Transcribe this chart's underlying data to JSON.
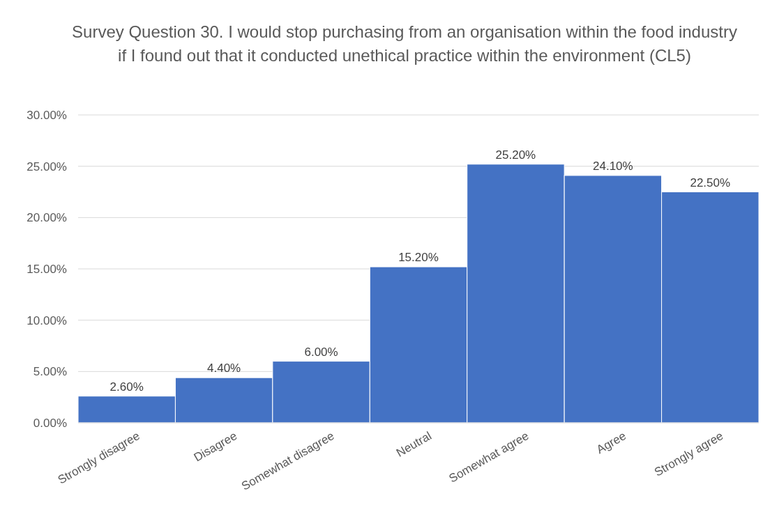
{
  "chart_data": {
    "type": "bar",
    "title": "Survey Question 30. I would stop purchasing from an organisation within the food industry if I found out that it conducted unethical practice within the environment (CL5)",
    "categories": [
      "Strongly disagree",
      "Disagree",
      "Somewhat disagree",
      "Neutral",
      "Somewhat agree",
      "Agree",
      "Strongly agree"
    ],
    "values": [
      2.6,
      4.4,
      6.0,
      15.2,
      25.2,
      24.1,
      22.5
    ],
    "value_labels": [
      "2.60%",
      "4.40%",
      "6.00%",
      "15.20%",
      "25.20%",
      "24.10%",
      "22.50%"
    ],
    "color": "#4472c4",
    "ylim": [
      0,
      30
    ],
    "yticks": [
      {
        "value": 0,
        "label": "0.00%"
      },
      {
        "value": 5,
        "label": "5.00%"
      },
      {
        "value": 10,
        "label": "10.00%"
      },
      {
        "value": 15,
        "label": "15.00%"
      },
      {
        "value": 20,
        "label": "20.00%"
      },
      {
        "value": 25,
        "label": "25.00%"
      },
      {
        "value": 30,
        "label": "30.00%"
      }
    ],
    "grid": "y"
  }
}
